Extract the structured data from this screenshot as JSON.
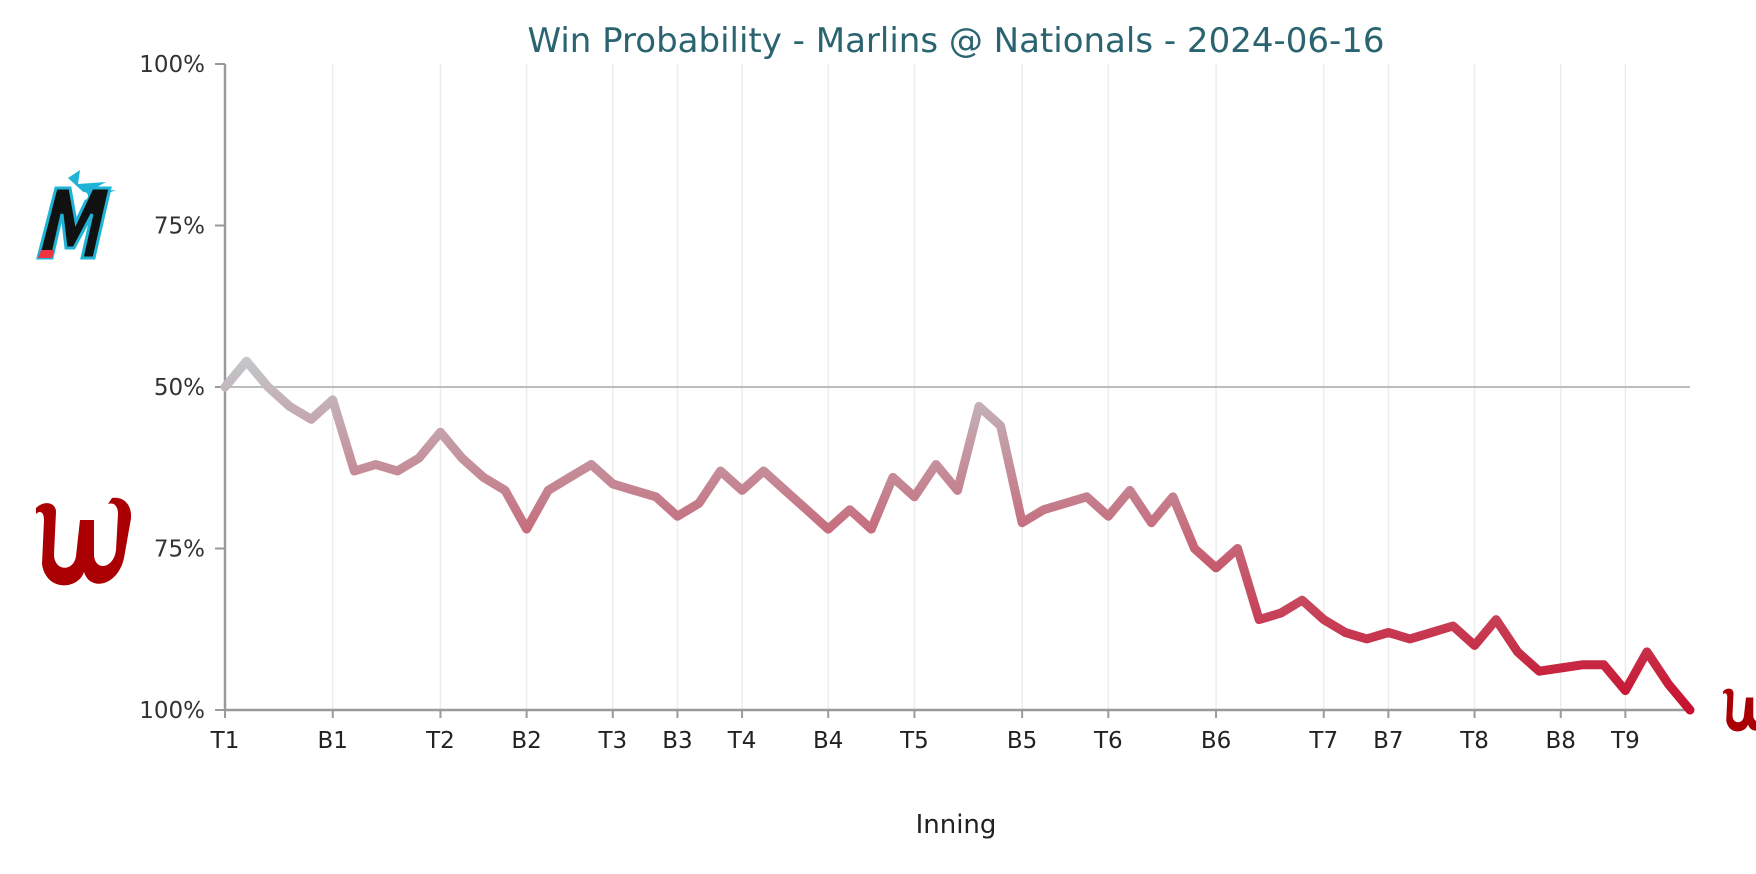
{
  "chart_data": {
    "type": "line",
    "title": "Win Probability - Marlins @ Nationals - 2024-06-16",
    "xlabel": "Inning",
    "ylabel": "",
    "y_tick_labels": [
      "100%",
      "75%",
      "50%",
      "75%",
      "100%"
    ],
    "ylim": [
      0,
      1
    ],
    "x_ticks": [
      {
        "label": "T1",
        "x": 0
      },
      {
        "label": "B1",
        "x": 5
      },
      {
        "label": "T2",
        "x": 10
      },
      {
        "label": "B2",
        "x": 14
      },
      {
        "label": "T3",
        "x": 18
      },
      {
        "label": "B3",
        "x": 21
      },
      {
        "label": "T4",
        "x": 24
      },
      {
        "label": "B4",
        "x": 28
      },
      {
        "label": "T5",
        "x": 32
      },
      {
        "label": "B5",
        "x": 37
      },
      {
        "label": "T6",
        "x": 41
      },
      {
        "label": "B6",
        "x": 46
      },
      {
        "label": "T7",
        "x": 51
      },
      {
        "label": "B7",
        "x": 54
      },
      {
        "label": "T8",
        "x": 58
      },
      {
        "label": "B8",
        "x": 62
      },
      {
        "label": "T9",
        "x": 65
      }
    ],
    "x_max": 68,
    "series": [
      {
        "values": [
          0.5,
          0.54,
          0.5,
          0.47,
          0.45,
          0.48,
          0.37,
          0.38,
          0.37,
          0.39,
          0.43,
          0.39,
          0.36,
          0.34,
          0.28,
          0.34,
          0.36,
          0.38,
          0.35,
          0.34,
          0.33,
          0.3,
          0.32,
          0.37,
          0.34,
          0.37,
          0.34,
          0.31,
          0.28,
          0.31,
          0.28,
          0.36,
          0.33,
          0.38,
          0.34,
          0.47,
          0.44,
          0.29,
          0.31,
          0.32,
          0.33,
          0.3,
          0.34,
          0.29,
          0.33,
          0.25,
          0.22,
          0.25,
          0.14,
          0.15,
          0.17,
          0.14,
          0.12,
          0.11,
          0.12,
          0.11,
          0.12,
          0.13,
          0.1,
          0.14,
          0.09,
          0.06,
          0.065,
          0.07,
          0.07,
          0.03,
          0.09,
          0.04,
          0.0
        ]
      }
    ],
    "colors": {
      "neutral_line": "#c3c9cc",
      "home_line": "#c8102e",
      "marlins_black": "#111111",
      "marlins_blue": "#1fb3d6",
      "marlins_red": "#ef3340",
      "nationals_red": "#ab0003"
    },
    "team_logos": [
      {
        "team": "Marlins",
        "icon": "marlins-logo-icon",
        "side": "top"
      },
      {
        "team": "Nationals",
        "icon": "nationals-logo-icon",
        "side": "bottom"
      }
    ],
    "grid": {
      "vertical": true,
      "horizontal": false,
      "midline": true
    },
    "legend": "none"
  }
}
